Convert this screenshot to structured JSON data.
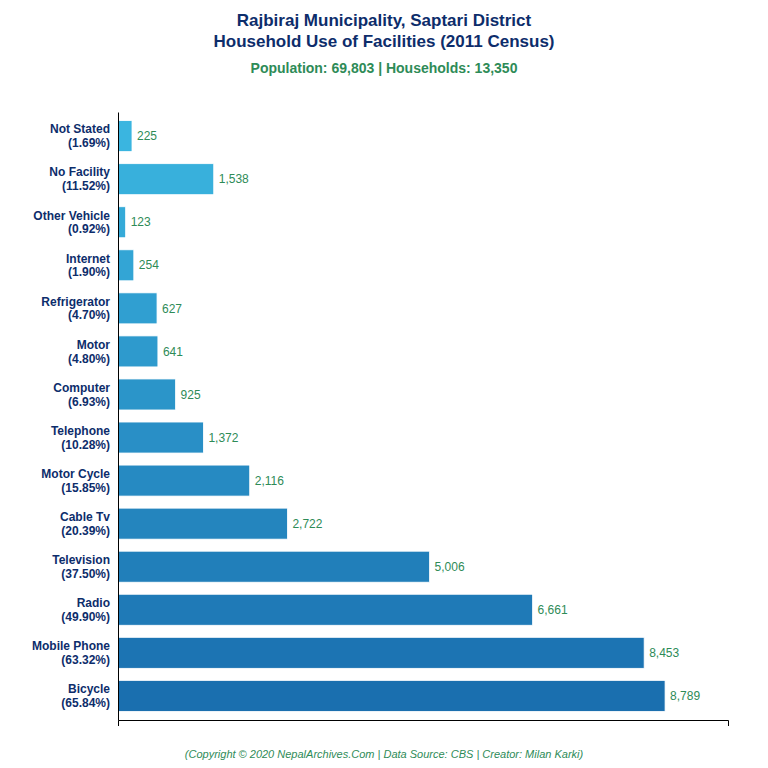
{
  "chart_data": {
    "type": "bar",
    "orientation": "horizontal",
    "title": "Rajbiraj Municipality, Saptari District\nHousehold Use of Facilities (2011 Census)",
    "subtitle": "Population: 69,803 | Households: 13,350",
    "annotations": [
      "(Copyright © 2020 NepalArchives.Com | Data Source: CBS | Creator: Milan Karki)"
    ],
    "categories": [
      "Bicycle\n(65.84%)",
      "Mobile Phone\n(63.32%)",
      "Radio\n(49.90%)",
      "Television\n(37.50%)",
      "Cable Tv\n(20.39%)",
      "Motor Cycle\n(15.85%)",
      "Telephone\n(10.28%)",
      "Computer\n(6.93%)",
      "Motor\n(4.80%)",
      "Refrigerator\n(4.70%)",
      "Internet\n(1.90%)",
      "Other Vehicle\n(0.92%)",
      "No Facility\n(11.52%)",
      "Not Stated\n(1.69%)"
    ],
    "values": [
      8789,
      8453,
      6661,
      5006,
      2722,
      2116,
      1372,
      925,
      641,
      627,
      254,
      123,
      1538,
      225
    ],
    "value_labels": [
      "8,789",
      "8,453",
      "6,661",
      "5,006",
      "2,722",
      "2,116",
      "1,372",
      "925",
      "641",
      "627",
      "254",
      "123",
      "1,538",
      "225"
    ],
    "colors": [
      "#1a6faf",
      "#1c74b3",
      "#1f7ab7",
      "#217fba",
      "#2485be",
      "#268ac2",
      "#298fc6",
      "#2b95c9",
      "#2e9acd",
      "#309fd1",
      "#33a5d5",
      "#35aad8",
      "#38b0dc",
      "#3ab5e0"
    ],
    "xlim": [
      0,
      9800
    ],
    "data_labels": true,
    "tick_labels": false,
    "grid": false
  }
}
